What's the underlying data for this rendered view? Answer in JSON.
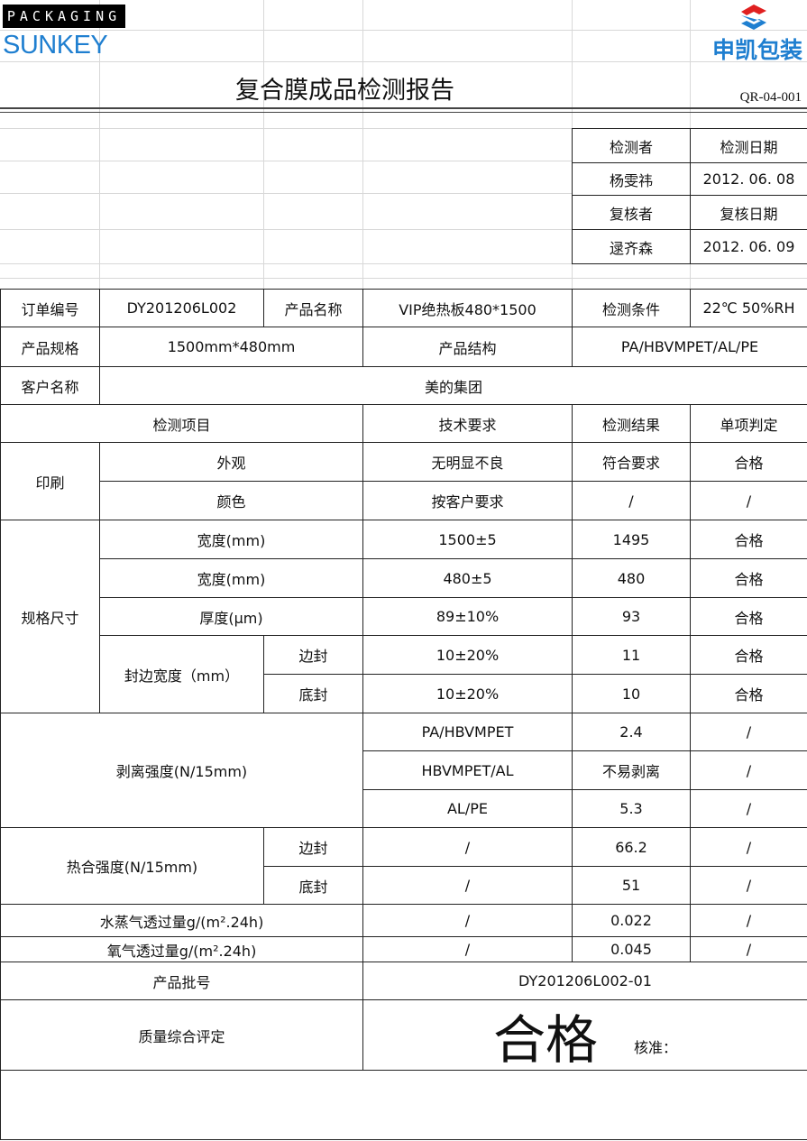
{
  "header": {
    "brand_top": "PACKAGING",
    "brand": "SUNKEY",
    "brand_cn": "申凯包装",
    "title": "复合膜成品检测报告",
    "doc_code": "QR-04-001",
    "brand_color": "#1f7fd0"
  },
  "inspection": {
    "inspector_label": "检测者",
    "inspect_date_label": "检测日期",
    "inspector": "杨雯祎",
    "inspect_date": "2012. 06. 08",
    "reviewer_label": "复核者",
    "review_date_label": "复核日期",
    "reviewer": "逯齐森",
    "review_date": "2012. 06. 09"
  },
  "info": {
    "order_no_label": "订单编号",
    "order_no": "DY201206L002",
    "product_name_label": "产品名称",
    "product_name": "VIP绝热板480*1500",
    "condition_label": "检测条件",
    "condition": "22℃   50%RH",
    "spec_label": "产品规格",
    "spec": "1500mm*480mm",
    "structure_label": "产品结构",
    "structure": "PA/HBVMPET/AL/PE",
    "customer_label": "客户名称",
    "customer": "美的集团"
  },
  "columns": {
    "item": "检测项目",
    "requirement": "技术要求",
    "result": "检测结果",
    "judgement": "单项判定"
  },
  "groups": {
    "printing": "印刷",
    "size": "规格尺寸",
    "seal_width": "封边宽度（mm）",
    "peel": "剥离强度(N/15mm)",
    "heat_seal": "热合强度(N/15mm)"
  },
  "rows": [
    {
      "item": "外观",
      "requirement": "无明显不良",
      "result": "符合要求",
      "judgement": "合格"
    },
    {
      "item": "颜色",
      "requirement": "按客户要求",
      "result": "/",
      "judgement": "/"
    },
    {
      "item": "宽度(mm)",
      "requirement": "1500±5",
      "result": "1495",
      "judgement": "合格"
    },
    {
      "item": "宽度(mm)",
      "requirement": "480±5",
      "result": "480",
      "judgement": "合格"
    },
    {
      "item": "厚度(μm)",
      "requirement": "89±10%",
      "result": "93",
      "judgement": "合格"
    },
    {
      "item": "边封",
      "requirement": "10±20%",
      "result": "11",
      "judgement": "合格"
    },
    {
      "item": "底封",
      "requirement": "10±20%",
      "result": "10",
      "judgement": "合格"
    },
    {
      "requirement": "PA/HBVMPET",
      "result": "2.4",
      "judgement": "/"
    },
    {
      "requirement": "HBVMPET/AL",
      "result": "不易剥离",
      "judgement": "/"
    },
    {
      "requirement": "AL/PE",
      "result": "5.3",
      "judgement": "/"
    },
    {
      "item": "边封",
      "requirement": "/",
      "result": "66.2",
      "judgement": "/"
    },
    {
      "item": "底封",
      "requirement": "/",
      "result": "51",
      "judgement": "/"
    },
    {
      "item": "水蒸气透过量g/(m².24h)",
      "requirement": "/",
      "result": "0.022",
      "judgement": "/"
    },
    {
      "item": "氧气透过量g/(m².24h)",
      "requirement": "/",
      "result": "0.045",
      "judgement": "/"
    }
  ],
  "batch": {
    "label": "产品批号",
    "value": "DY201206L002-01"
  },
  "overall": {
    "label": "质量综合评定",
    "value": "合格",
    "approve_label": "核准："
  }
}
